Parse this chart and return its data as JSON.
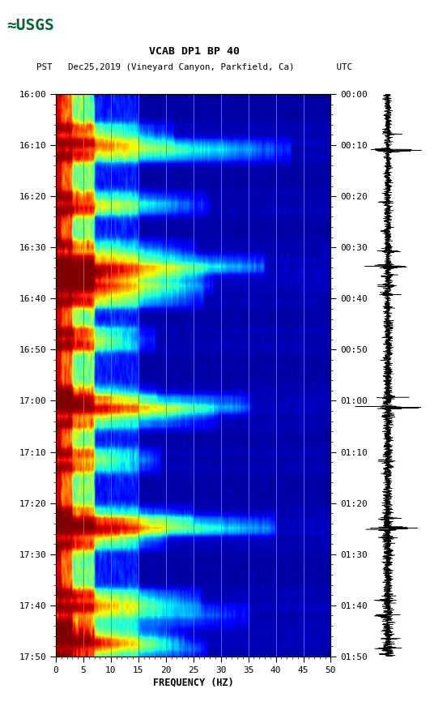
{
  "title_line1": "VCAB DP1 BP 40",
  "title_line2": "PST   Dec25,2019 (Vineyard Canyon, Parkfield, Ca)        UTC",
  "xlabel": "FREQUENCY (HZ)",
  "pst_ticks": [
    "16:00",
    "16:10",
    "16:20",
    "16:30",
    "16:40",
    "16:50",
    "17:00",
    "17:10",
    "17:20",
    "17:30",
    "17:40",
    "17:50"
  ],
  "utc_ticks": [
    "00:00",
    "00:10",
    "00:20",
    "00:30",
    "00:40",
    "00:50",
    "01:00",
    "01:10",
    "01:20",
    "01:30",
    "01:40",
    "01:50"
  ],
  "freq_ticks": [
    0,
    5,
    10,
    15,
    20,
    25,
    30,
    35,
    40,
    45,
    50
  ],
  "grid_freqs": [
    5,
    10,
    15,
    20,
    25,
    30,
    35,
    40,
    45
  ],
  "background_color": "#ffffff",
  "usgs_color": "#006633",
  "n_time": 116,
  "n_freq": 500,
  "seed": 7,
  "event_rows": [
    8,
    11,
    22,
    32,
    35,
    37,
    39,
    41,
    50,
    62,
    64,
    66,
    75,
    87,
    89,
    91,
    104,
    107,
    112,
    114
  ],
  "broad_rows": [
    11,
    35,
    64,
    89,
    107,
    114
  ],
  "large_rows": [
    11,
    35,
    64,
    89
  ]
}
